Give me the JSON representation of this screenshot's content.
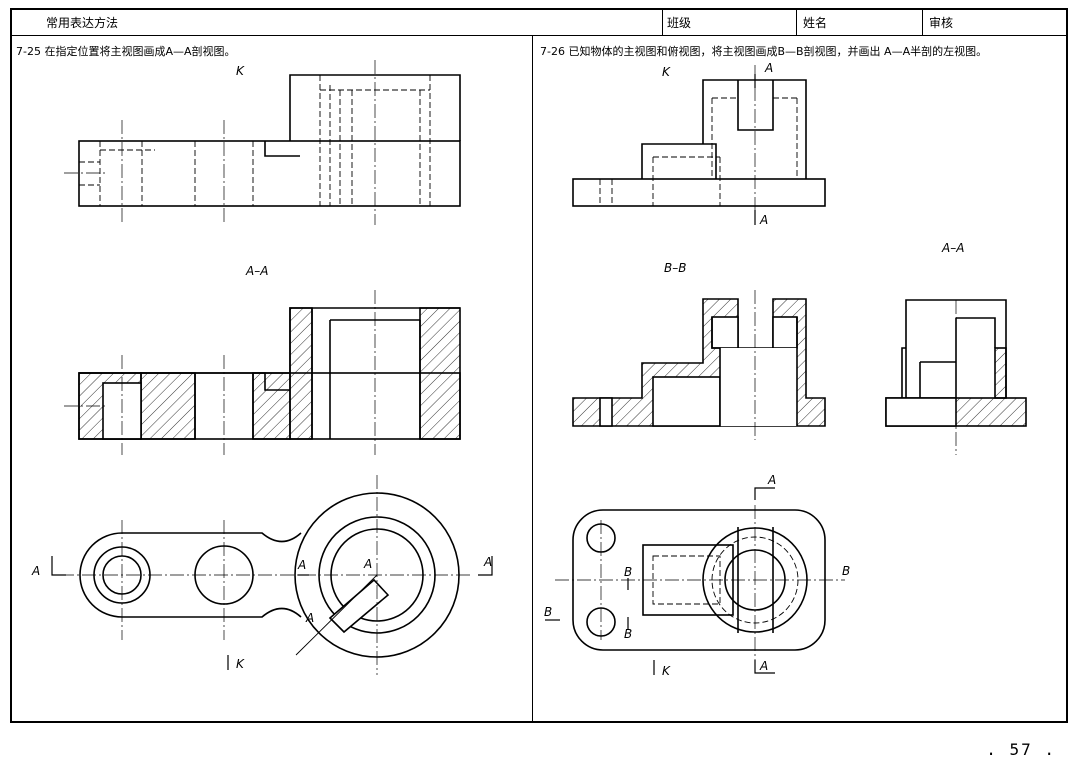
{
  "header": {
    "title": "常用表达方法",
    "class_label": "班级",
    "name_label": "姓名",
    "review_label": "审核"
  },
  "problem_25": {
    "caption": "7-25 在指定位置将主视图画成A—A剖视图。",
    "view_k": "K",
    "section_title": "A–A",
    "cut_label_left": "A",
    "cut_label_right": "A",
    "cut_label_mid_top": "A",
    "cut_label_mid_low": "A",
    "cut_label_center": "A",
    "arrow_k": "K"
  },
  "problem_26": {
    "caption": "7-26 已知物体的主视图和俯视图，将主视图画成B—B剖视图，并画出 A—A半剖的左视图。",
    "view_k": "K",
    "cut_a_top": "A",
    "cut_a_bottom": "A",
    "section_bb": "B–B",
    "section_aa": "A–A",
    "plan_a_top": "A",
    "plan_a_bottom": "A",
    "plan_b_right": "B",
    "plan_b_left": "B",
    "plan_b_mid_top": "B",
    "plan_b_mid_low": "B",
    "arrow_k": "K"
  },
  "page_number": ". 57 ."
}
